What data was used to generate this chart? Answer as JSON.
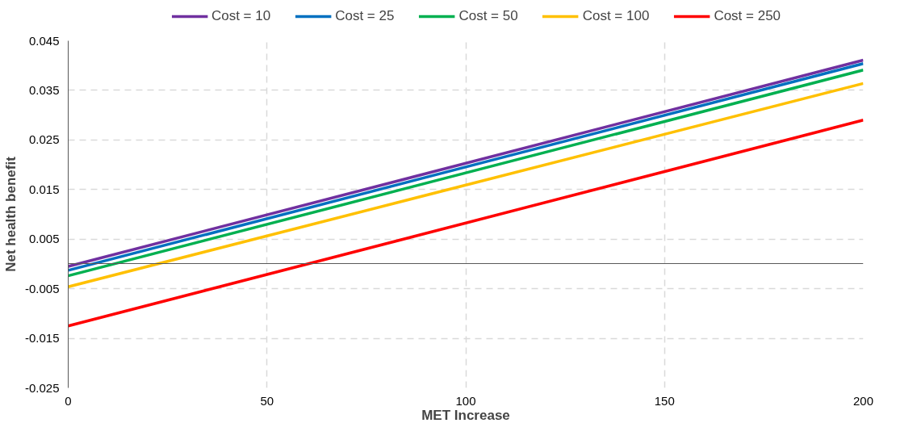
{
  "chart_data": {
    "type": "line",
    "xlabel": "MET Increase",
    "ylabel": "Net health benefit",
    "x": [
      0,
      200
    ],
    "series": [
      {
        "name": "Cost = 10",
        "color": "#7030a0",
        "values": [
          -0.0005,
          0.0411
        ]
      },
      {
        "name": "Cost = 25",
        "color": "#0070c0",
        "values": [
          -0.0013,
          0.0404
        ]
      },
      {
        "name": "Cost = 50",
        "color": "#00b050",
        "values": [
          -0.0024,
          0.0391
        ]
      },
      {
        "name": "Cost = 100",
        "color": "#ffc000",
        "values": [
          -0.0046,
          0.0364
        ]
      },
      {
        "name": "Cost = 250",
        "color": "#ff0000",
        "values": [
          -0.0125,
          0.029
        ]
      }
    ],
    "xlim": [
      0,
      200
    ],
    "xticks": [
      0,
      50,
      100,
      150,
      200
    ],
    "ylim": [
      -0.025,
      0.045
    ],
    "yticks": [
      -0.025,
      -0.015,
      -0.005,
      0.005,
      0.015,
      0.025,
      0.035,
      0.045
    ],
    "grid": true,
    "legend": "top",
    "marker": "none",
    "line_style": "solid"
  }
}
